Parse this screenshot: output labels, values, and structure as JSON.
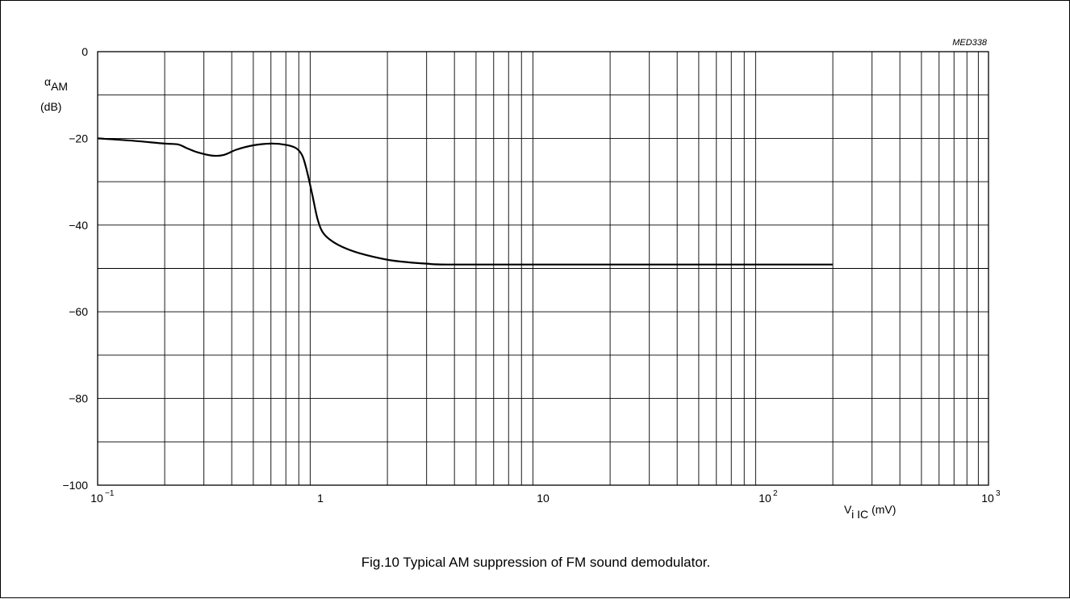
{
  "figure_code": "MED338",
  "caption": "Fig.10  Typical AM suppression of FM sound demodulator.",
  "chart_data": {
    "type": "line",
    "title": "",
    "xscale": "log",
    "xlim": [
      0.1,
      1000
    ],
    "ylim": [
      -100,
      0
    ],
    "grid": true,
    "xlabel_parts": {
      "base": "V",
      "sub": "i IC",
      "unit": "(mV)"
    },
    "ylabel_parts": {
      "symbol": "α",
      "sub": "AM",
      "unit": "(dB)"
    },
    "yticks": [
      {
        "value": 0,
        "label": "0"
      },
      {
        "value": -20,
        "label": "−20"
      },
      {
        "value": -40,
        "label": "−40"
      },
      {
        "value": -60,
        "label": "−60"
      },
      {
        "value": -80,
        "label": "−80"
      },
      {
        "value": -100,
        "label": "−100"
      }
    ],
    "xticks": [
      {
        "value": 0.1,
        "base": "10",
        "exp": "−1"
      },
      {
        "value": 1,
        "base": "1",
        "exp": ""
      },
      {
        "value": 10,
        "base": "10",
        "exp": ""
      },
      {
        "value": 100,
        "base": "10",
        "exp": "2"
      },
      {
        "value": 1000,
        "base": "10",
        "exp": "3"
      }
    ],
    "series": [
      {
        "points": [
          [
            0.1,
            -20
          ],
          [
            0.14,
            -20.5
          ],
          [
            0.2,
            -21.2
          ],
          [
            0.23,
            -21.4
          ],
          [
            0.25,
            -22.2
          ],
          [
            0.28,
            -23.2
          ],
          [
            0.33,
            -24
          ],
          [
            0.37,
            -23.8
          ],
          [
            0.42,
            -22.6
          ],
          [
            0.5,
            -21.6
          ],
          [
            0.6,
            -21.2
          ],
          [
            0.7,
            -21.5
          ],
          [
            0.78,
            -22.3
          ],
          [
            0.83,
            -24
          ],
          [
            0.87,
            -27.5
          ],
          [
            0.92,
            -33
          ],
          [
            0.97,
            -38.5
          ],
          [
            1.02,
            -41.5
          ],
          [
            1.1,
            -43.3
          ],
          [
            1.25,
            -45
          ],
          [
            1.5,
            -46.5
          ],
          [
            2,
            -48
          ],
          [
            2.5,
            -48.6
          ],
          [
            3,
            -48.9
          ],
          [
            3.7,
            -49.1
          ],
          [
            10,
            -49.1
          ],
          [
            100,
            -49.1
          ],
          [
            200,
            -49.1
          ]
        ]
      }
    ]
  }
}
